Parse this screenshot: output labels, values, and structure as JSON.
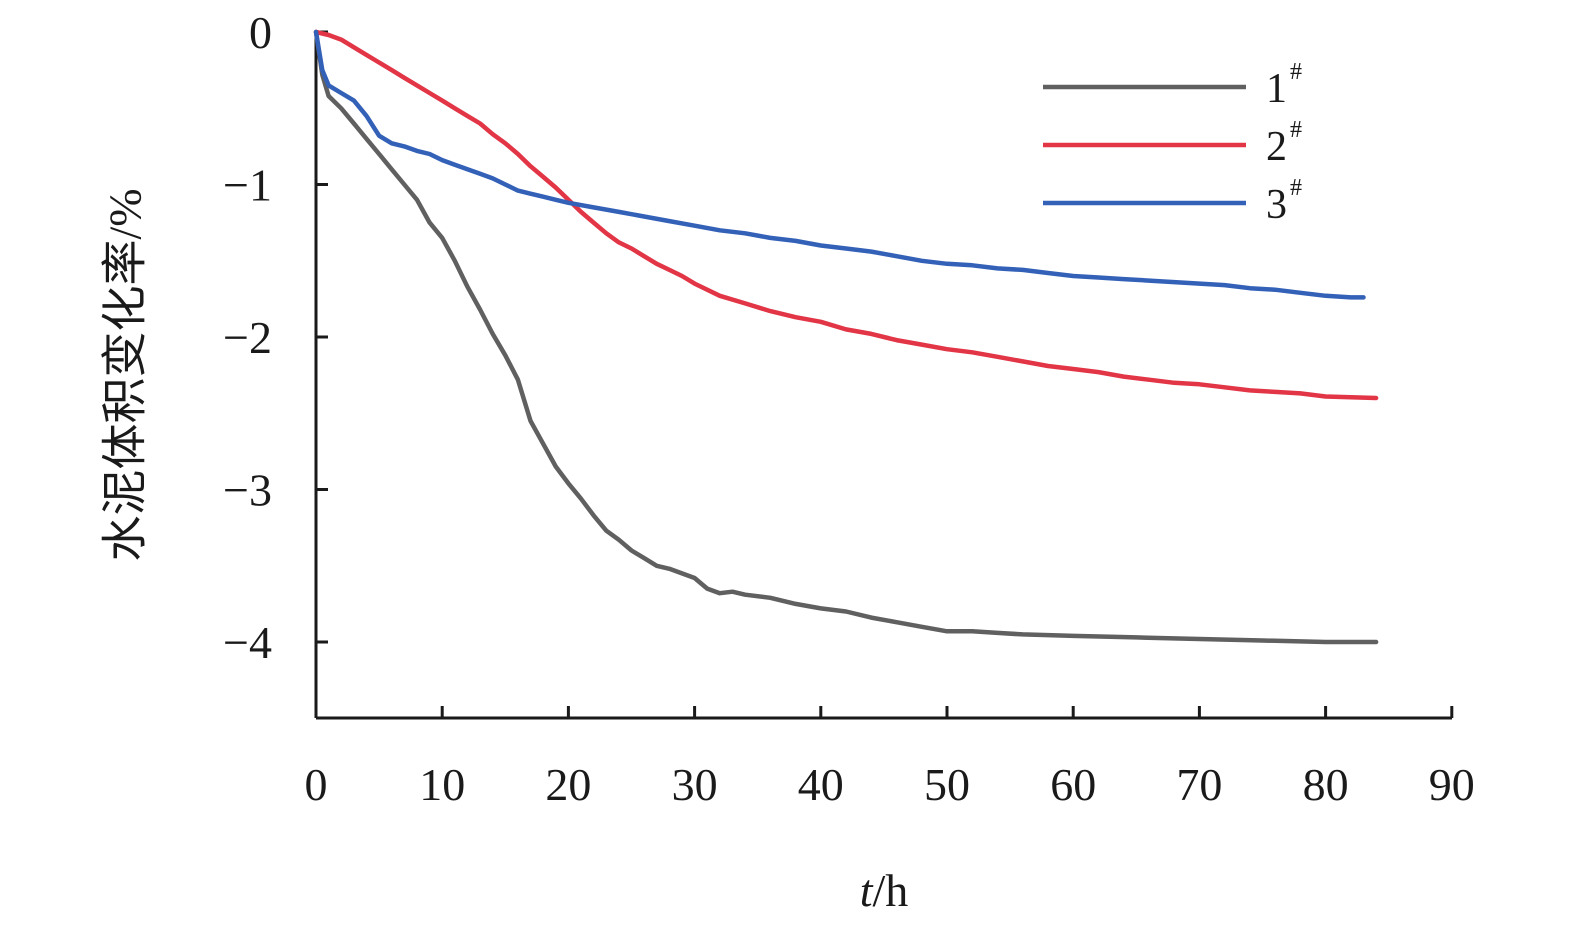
{
  "chart_data": {
    "type": "line",
    "xlabel_italic": "t",
    "xlabel_rest": "/h",
    "ylabel": "水泥体积变化率/%",
    "xlim": [
      0,
      90
    ],
    "ylim": [
      -4.5,
      0
    ],
    "x_ticks": [
      "0",
      "10",
      "20",
      "30",
      "40",
      "50",
      "60",
      "70",
      "80",
      "90"
    ],
    "y_ticks": [
      "0",
      "−1",
      "−2",
      "−3",
      "−4"
    ],
    "legend_position": "top-right",
    "series": [
      {
        "name": "1",
        "sup": "#",
        "color": "#606060",
        "x": [
          0,
          0.5,
          1,
          2,
          3,
          4,
          5,
          6,
          7,
          8,
          9,
          10,
          11,
          12,
          13,
          14,
          15,
          16,
          17,
          18,
          19,
          20,
          21,
          22,
          23,
          24,
          25,
          26,
          27,
          28,
          30,
          31,
          32,
          33,
          34,
          36,
          38,
          40,
          42,
          44,
          46,
          48,
          50,
          52,
          54,
          56,
          60,
          65,
          70,
          75,
          80,
          84
        ],
        "y": [
          0,
          -0.28,
          -0.42,
          -0.5,
          -0.6,
          -0.7,
          -0.8,
          -0.9,
          -1.0,
          -1.1,
          -1.25,
          -1.35,
          -1.5,
          -1.67,
          -1.82,
          -1.98,
          -2.12,
          -2.28,
          -2.55,
          -2.7,
          -2.85,
          -2.96,
          -3.06,
          -3.17,
          -3.27,
          -3.33,
          -3.4,
          -3.45,
          -3.5,
          -3.52,
          -3.58,
          -3.65,
          -3.68,
          -3.67,
          -3.69,
          -3.71,
          -3.75,
          -3.78,
          -3.8,
          -3.84,
          -3.87,
          -3.9,
          -3.93,
          -3.93,
          -3.94,
          -3.95,
          -3.96,
          -3.97,
          -3.98,
          -3.99,
          -4.0,
          -4.0
        ]
      },
      {
        "name": "2",
        "sup": "#",
        "color": "#e23546",
        "x": [
          0,
          1,
          2,
          3,
          4,
          5,
          6,
          7,
          8,
          9,
          10,
          11,
          12,
          13,
          14,
          15,
          16,
          17,
          18,
          19,
          20,
          21,
          22,
          23,
          24,
          25,
          26,
          27,
          28,
          29,
          30,
          32,
          34,
          36,
          38,
          40,
          42,
          44,
          46,
          48,
          50,
          52,
          54,
          56,
          58,
          60,
          62,
          64,
          66,
          68,
          70,
          72,
          74,
          76,
          78,
          80,
          84
        ],
        "y": [
          0,
          -0.02,
          -0.05,
          -0.1,
          -0.15,
          -0.2,
          -0.25,
          -0.3,
          -0.35,
          -0.4,
          -0.45,
          -0.5,
          -0.55,
          -0.6,
          -0.67,
          -0.73,
          -0.8,
          -0.88,
          -0.95,
          -1.02,
          -1.1,
          -1.18,
          -1.25,
          -1.32,
          -1.38,
          -1.42,
          -1.47,
          -1.52,
          -1.56,
          -1.6,
          -1.65,
          -1.73,
          -1.78,
          -1.83,
          -1.87,
          -1.9,
          -1.95,
          -1.98,
          -2.02,
          -2.05,
          -2.08,
          -2.1,
          -2.13,
          -2.16,
          -2.19,
          -2.21,
          -2.23,
          -2.26,
          -2.28,
          -2.3,
          -2.31,
          -2.33,
          -2.35,
          -2.36,
          -2.37,
          -2.39,
          -2.4
        ]
      },
      {
        "name": "3",
        "sup": "#",
        "color": "#3461b8",
        "x": [
          0,
          0.5,
          1,
          2,
          3,
          4,
          5,
          6,
          7,
          8,
          9,
          10,
          11,
          12,
          13,
          14,
          15,
          16,
          17,
          18,
          19,
          20,
          22,
          24,
          26,
          28,
          30,
          32,
          34,
          36,
          38,
          40,
          42,
          44,
          46,
          48,
          50,
          52,
          54,
          56,
          58,
          60,
          62,
          64,
          66,
          68,
          70,
          72,
          74,
          76,
          78,
          80,
          82,
          83
        ],
        "y": [
          0,
          -0.25,
          -0.35,
          -0.4,
          -0.45,
          -0.55,
          -0.68,
          -0.73,
          -0.75,
          -0.78,
          -0.8,
          -0.84,
          -0.87,
          -0.9,
          -0.93,
          -0.96,
          -1.0,
          -1.04,
          -1.06,
          -1.08,
          -1.1,
          -1.12,
          -1.15,
          -1.18,
          -1.21,
          -1.24,
          -1.27,
          -1.3,
          -1.32,
          -1.35,
          -1.37,
          -1.4,
          -1.42,
          -1.44,
          -1.47,
          -1.5,
          -1.52,
          -1.53,
          -1.55,
          -1.56,
          -1.58,
          -1.6,
          -1.61,
          -1.62,
          -1.63,
          -1.64,
          -1.65,
          -1.66,
          -1.68,
          -1.69,
          -1.71,
          -1.73,
          -1.74,
          -1.74
        ]
      }
    ]
  }
}
